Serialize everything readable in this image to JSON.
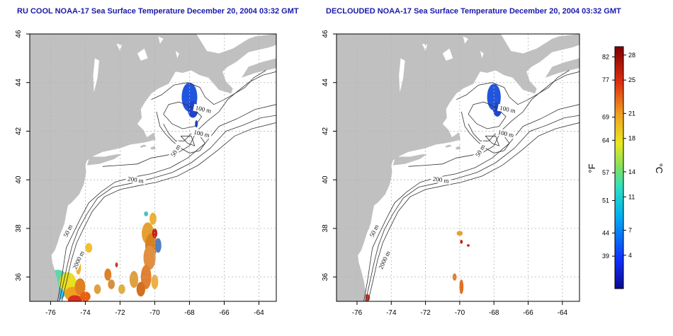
{
  "panels": [
    {
      "title": "RU COOL NOAA-17 Sea Surface Temperature December 20, 2004 03:32 GMT"
    },
    {
      "title": "DECLOUDED NOAA-17 Sea Surface Temperature December 20, 2004 03:32 GMT"
    }
  ],
  "axes": {
    "lon_ticks": [
      "-76",
      "-74",
      "-72",
      "-70",
      "-68",
      "-66",
      "-64"
    ],
    "lat_ticks": [
      "36",
      "38",
      "40",
      "42",
      "44",
      "46"
    ],
    "lon_range": [
      -77.2,
      -63.0
    ],
    "lat_range": [
      35.0,
      46.0
    ]
  },
  "contour_labels": [
    {
      "text": "100 m",
      "lon": -67.2,
      "lat": 42.9,
      "rot": 12
    },
    {
      "text": "100 m",
      "lon": -67.3,
      "lat": 41.9,
      "rot": 12
    },
    {
      "text": "50 m",
      "lon": -68.8,
      "lat": 41.2,
      "rot": -60
    },
    {
      "text": "200 m",
      "lon": -71.1,
      "lat": 40.0,
      "rot": 8
    },
    {
      "text": "50 m",
      "lon": -75.0,
      "lat": 37.9,
      "rot": -65
    },
    {
      "text": "2000 m",
      "lon": -74.4,
      "lat": 36.7,
      "rot": -65
    }
  ],
  "colorbar": {
    "f_label": "°F",
    "c_label": "°C",
    "f_ticks": [
      "82",
      "77",
      "69",
      "64",
      "57",
      "51",
      "44",
      "39"
    ],
    "c_ticks": [
      "28",
      "25",
      "21",
      "18",
      "14",
      "11",
      "7",
      "4"
    ],
    "f_values": [
      82,
      77,
      69,
      64,
      57,
      51,
      44,
      39
    ],
    "c_values": [
      28,
      25,
      21,
      18,
      14,
      11,
      7,
      4
    ],
    "range_c": [
      0,
      29
    ]
  },
  "colors": {
    "title": "#1a1aa8",
    "land": "#c0c0c0",
    "grid": "#b4b4b4",
    "contour": "#333333"
  }
}
